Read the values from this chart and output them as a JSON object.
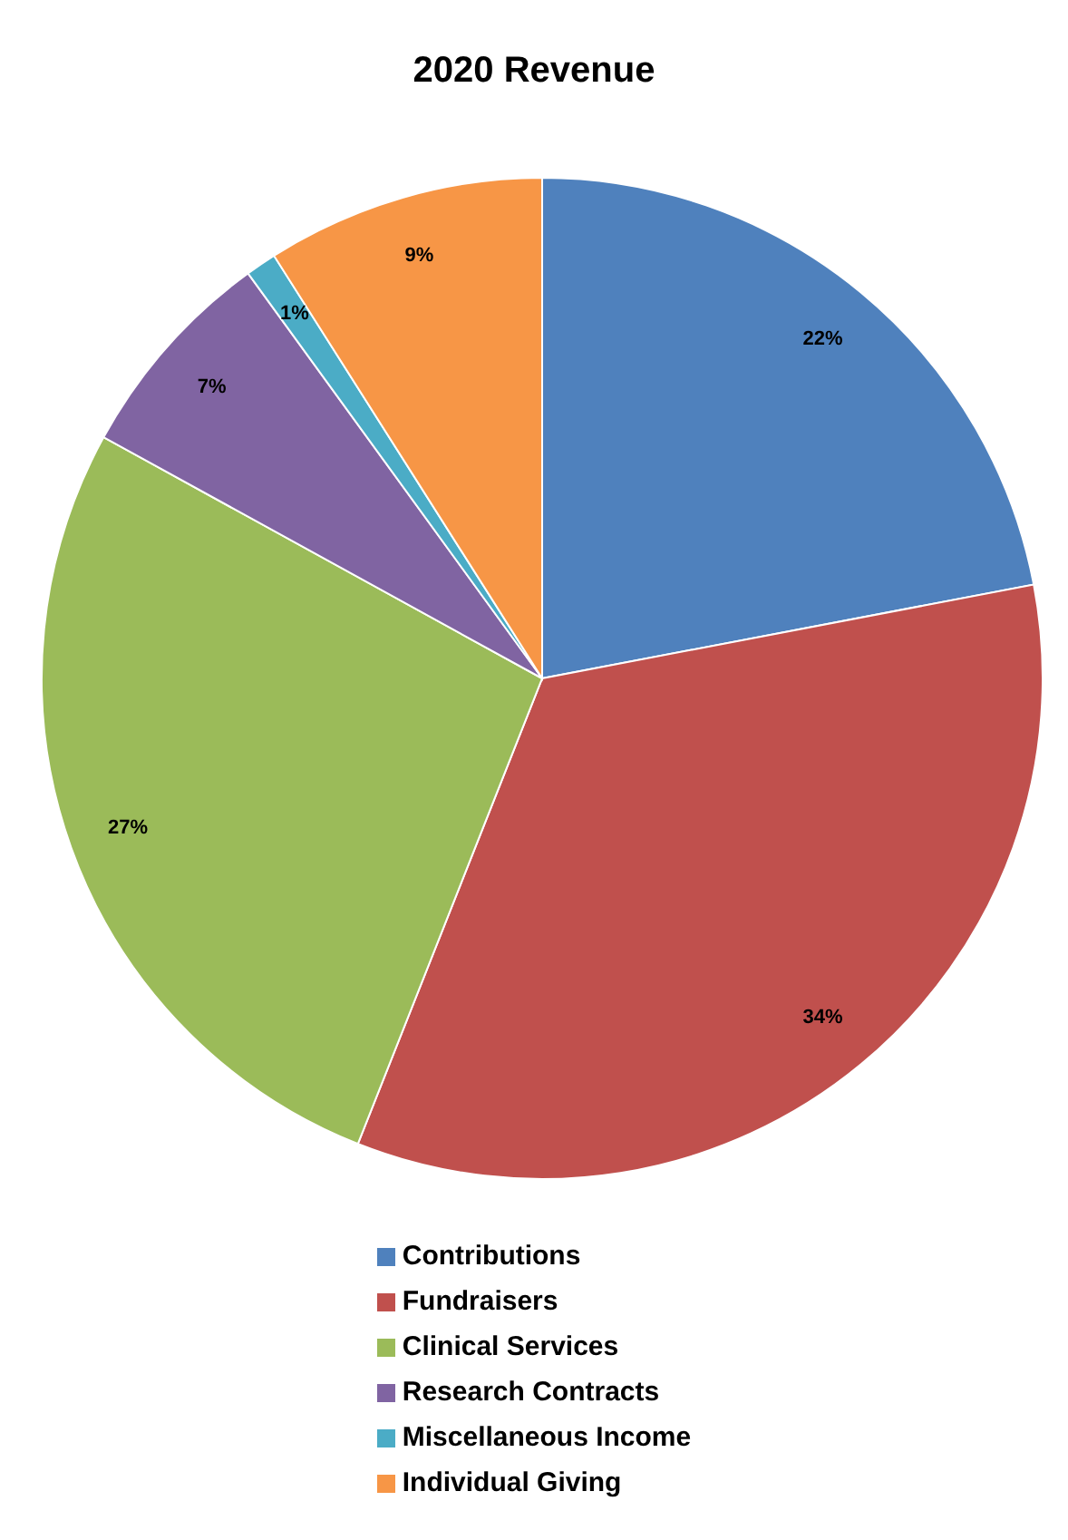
{
  "chart_data": {
    "type": "pie",
    "title": "2020 Revenue",
    "categories": [
      "Contributions",
      "Fundraisers",
      "Clinical Services",
      "Research Contracts",
      "Miscellaneous Income",
      "Individual Giving"
    ],
    "values": [
      22,
      34,
      27,
      7,
      1,
      9
    ],
    "colors": [
      "#4f81bd",
      "#c0504d",
      "#9bbb59",
      "#8064a2",
      "#4bacc6",
      "#f79646"
    ],
    "value_labels": [
      "22%",
      "34%",
      "27%",
      "7%",
      "1%",
      "9%"
    ],
    "legend": "bottom"
  }
}
